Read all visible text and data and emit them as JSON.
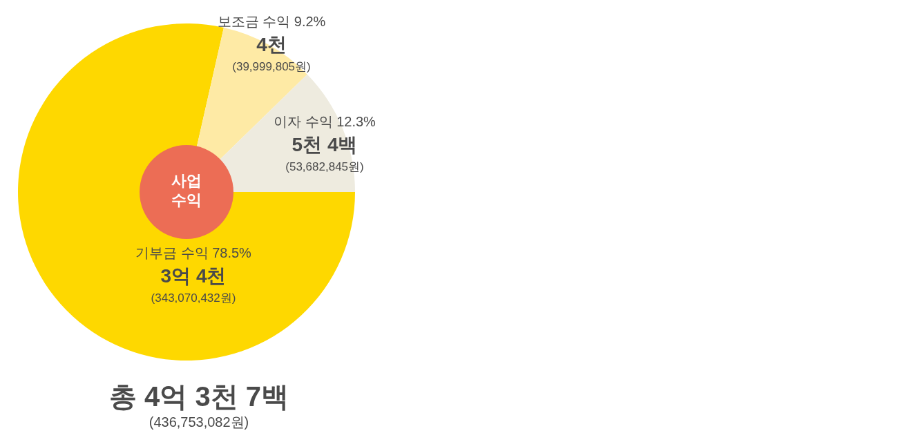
{
  "chart_data": {
    "type": "donut",
    "title": "사업\n수익",
    "categories": [
      "기부금 수익 78.5%",
      "보조금 수익 9.2%",
      "이자 수익 12.3%"
    ],
    "values": [
      343070432,
      39999805,
      53682845
    ],
    "colors": [
      "#fed800",
      "#feeaa5",
      "#eeebdf"
    ],
    "value_labels": [
      "3억 4천\n(343,070,432원)",
      "4천\n(39,999,805원)",
      "5천 4백\n(53,682,845원)"
    ],
    "annotations": [
      "총 4억 3천 7백\n(436,753,082원)"
    ],
    "legend": false
  }
}
